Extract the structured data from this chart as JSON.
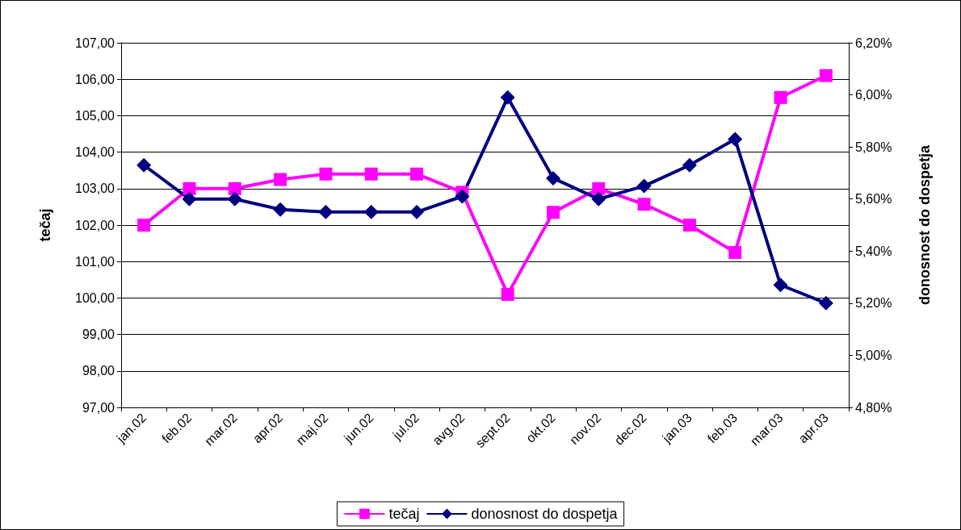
{
  "chart_data": {
    "type": "line",
    "ylabel": "tečaj",
    "y2label": "donosnost do dospetja",
    "categories": [
      "jan.02",
      "feb.02",
      "mar.02",
      "apr.02",
      "maj.02",
      "jun.02",
      "jul.02",
      "avg.02",
      "sept.02",
      "okt.02",
      "nov.02",
      "dec.02",
      "jan.03",
      "feb.03",
      "mar.03",
      "apr.03"
    ],
    "series": [
      {
        "name": "tečaj",
        "color": "#ff00ff",
        "marker": "square",
        "values": [
          102.0,
          103.0,
          103.0,
          103.25,
          103.4,
          103.4,
          103.4,
          102.9,
          100.1,
          102.35,
          103.0,
          102.57,
          102.0,
          101.25,
          105.5,
          106.1
        ]
      },
      {
        "name": "donosnost do dospetja",
        "color": "#000080",
        "marker": "diamond",
        "axis": "y2",
        "values": [
          5.73,
          5.6,
          5.6,
          5.56,
          5.55,
          5.55,
          5.55,
          5.61,
          5.99,
          5.68,
          5.6,
          5.65,
          5.73,
          5.83,
          5.27,
          5.2
        ]
      }
    ],
    "ylim": [
      97,
      107
    ],
    "yticks": [
      {
        "value": 97,
        "label": "97,00"
      },
      {
        "value": 98,
        "label": "98,00"
      },
      {
        "value": 99,
        "label": "99,00"
      },
      {
        "value": 100,
        "label": "100,00"
      },
      {
        "value": 101,
        "label": "101,00"
      },
      {
        "value": 102,
        "label": "102,00"
      },
      {
        "value": 103,
        "label": "103,00"
      },
      {
        "value": 104,
        "label": "104,00"
      },
      {
        "value": 105,
        "label": "105,00"
      },
      {
        "value": 106,
        "label": "106,00"
      },
      {
        "value": 107,
        "label": "107,00"
      }
    ],
    "y2lim": [
      4.8,
      6.2
    ],
    "y2ticks": [
      {
        "value": 4.8,
        "label": "4,80%"
      },
      {
        "value": 5.0,
        "label": "5,00%"
      },
      {
        "value": 5.2,
        "label": "5,20%"
      },
      {
        "value": 5.4,
        "label": "5,40%"
      },
      {
        "value": 5.6,
        "label": "5,60%"
      },
      {
        "value": 5.8,
        "label": "5,80%"
      },
      {
        "value": 6.0,
        "label": "6,00%"
      },
      {
        "value": 6.2,
        "label": "6,20%"
      }
    ],
    "grid": "y",
    "legend": "bottom",
    "line_style": "solid"
  }
}
